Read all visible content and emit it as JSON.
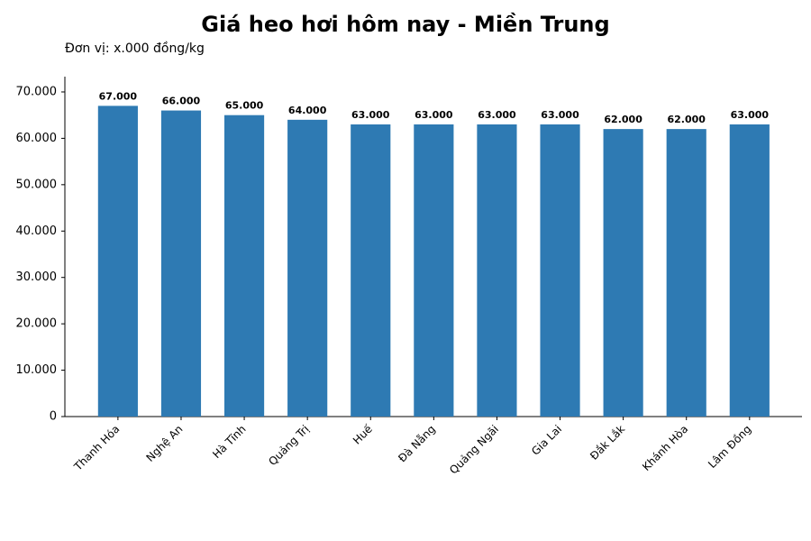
{
  "chart_data": {
    "type": "bar",
    "title": "Giá heo hơi hôm nay - Miền Trung",
    "subtitle": "Đơn vị: x.000 đồng/kg",
    "categories": [
      "Thanh Hóa",
      "Nghệ An",
      "Hà Tĩnh",
      "Quảng Trị",
      "Huế",
      "Đà Nẵng",
      "Quảng Ngãi",
      "Gia Lai",
      "Đắk Lắk",
      "Khánh Hòa",
      "Lâm Đồng"
    ],
    "values": [
      67000,
      66000,
      65000,
      64000,
      63000,
      63000,
      63000,
      63000,
      62000,
      62000,
      63000
    ],
    "value_labels": [
      "67.000",
      "66.000",
      "65.000",
      "64.000",
      "63.000",
      "63.000",
      "63.000",
      "63.000",
      "62.000",
      "62.000",
      "63.000"
    ],
    "color": "#2e7ab3",
    "ylim": [
      0,
      73300
    ],
    "yticks": [
      0,
      {
        "value": 10000,
        "label": "10.000"
      },
      {
        "value": 20000,
        "label": "20.000"
      },
      {
        "value": 30000,
        "label": "30.000"
      },
      {
        "value": 40000,
        "label": "40.000"
      },
      {
        "value": 50000,
        "label": "50.000"
      },
      {
        "value": 60000,
        "label": "60.000"
      },
      {
        "value": 70000,
        "label": "70.000"
      }
    ],
    "grid": false
  }
}
